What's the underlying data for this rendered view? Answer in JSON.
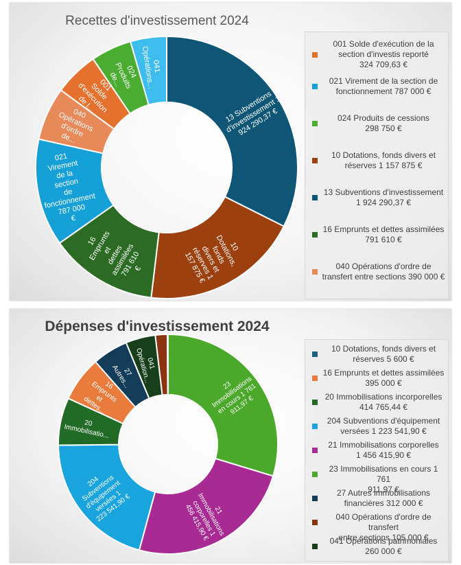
{
  "charts": [
    {
      "chart_data": {
        "type": "pie",
        "title": "Recettes d'investissement 2024",
        "slices": [
          {
            "label": "13 Subventions d'investissement 1 924 290,37 €",
            "legend": "13 Subventions d'investissement\n1 924 290,37 €",
            "value": 1924290.37,
            "color": "#0f5676"
          },
          {
            "label": "10 Dotations, fonds divers et réserves 1 157 875 €",
            "legend": "10 Dotations, fonds divers et\nréserves 1 157 875 €",
            "value": 1157875,
            "color": "#9c4010"
          },
          {
            "label": "16 Emprunts et dettes assimilées 791 610 €",
            "legend": "16 Emprunts et dettes assimilées\n791 610 €",
            "value": 791610,
            "color": "#2b6b23"
          },
          {
            "label": "021 Virement de la section de fonctionnement 787 000 €",
            "legend": "021 Virement de la section de\nfonctionnement  787 000 €",
            "value": 787000,
            "color": "#16a0d8"
          },
          {
            "label": "040 Opérations d'ordre de...",
            "legend": "040 Opérations d'ordre de\ntransfert entre sections 390 000 €",
            "value": 390000,
            "color": "#e8895a"
          },
          {
            "label": "001 Solde d'exécution de l...",
            "legend": "001 Solde d'exécution de la\nsection d'investis reporté\n324 709,63 €",
            "value": 324709.63,
            "color": "#e4722e"
          },
          {
            "label": "024 Produits de...",
            "legend": "024 Produits de cessions\n298 750 €",
            "value": 298750,
            "color": "#4aad32"
          },
          {
            "label": "041 Opérations...",
            "legend": "",
            "value": 265000,
            "color": "#3dbcee"
          }
        ],
        "legend_order": [
          5,
          3,
          6,
          1,
          0,
          2,
          4
        ]
      }
    },
    {
      "chart_data": {
        "type": "pie",
        "title": "Dépenses d'investissement 2024",
        "slices": [
          {
            "label": "23 Immobilisations en cours 1 761 911,97 €",
            "legend": "23 Immobilisations en cours 1 761\n911,97 €",
            "value": 1761911.97,
            "color": "#4aa82a"
          },
          {
            "label": "21 Immobilisations corporelles 1 456 415,90 €",
            "legend": "21 Immobilisations corporelles\n1 456 415,90 €",
            "value": 1456415.9,
            "color": "#a82a93"
          },
          {
            "label": "204 Subventions d'équipement versées 1 223 541,90 €",
            "legend": "204 Subventions d'équipement\nversées 1 223 541,90 €",
            "value": 1223541.9,
            "color": "#19a4de"
          },
          {
            "label": "20 Immobilisatio...",
            "legend": "20 Immobilisations incorporelles\n414 765,44 €",
            "value": 414765.44,
            "color": "#216b26"
          },
          {
            "label": "16 Emprunts et dettes...",
            "legend": "16 Emprunts et dettes assimilées\n395 000 €",
            "value": 395000,
            "color": "#e97c3c"
          },
          {
            "label": "27 Autres...",
            "legend": "27 Autres immobilisations\nfinancières            312 000 €",
            "value": 312000,
            "color": "#123c57"
          },
          {
            "label": "041 Opération...",
            "legend": "041 Opérations patrimoniales\n260 000 €",
            "value": 260000,
            "color": "#173f1a"
          },
          {
            "label": "",
            "legend": "040 Opérations d'ordre de transfert\nentre sections 105 000 €",
            "value": 105000,
            "color": "#8b3510"
          },
          {
            "label": "",
            "legend": "10 Dotations, fonds divers et\nréserves 5 600 €",
            "value": 5600,
            "color": "#1d5f80"
          }
        ],
        "legend_order": [
          8,
          4,
          3,
          2,
          1,
          0,
          5,
          7,
          6
        ]
      }
    }
  ]
}
